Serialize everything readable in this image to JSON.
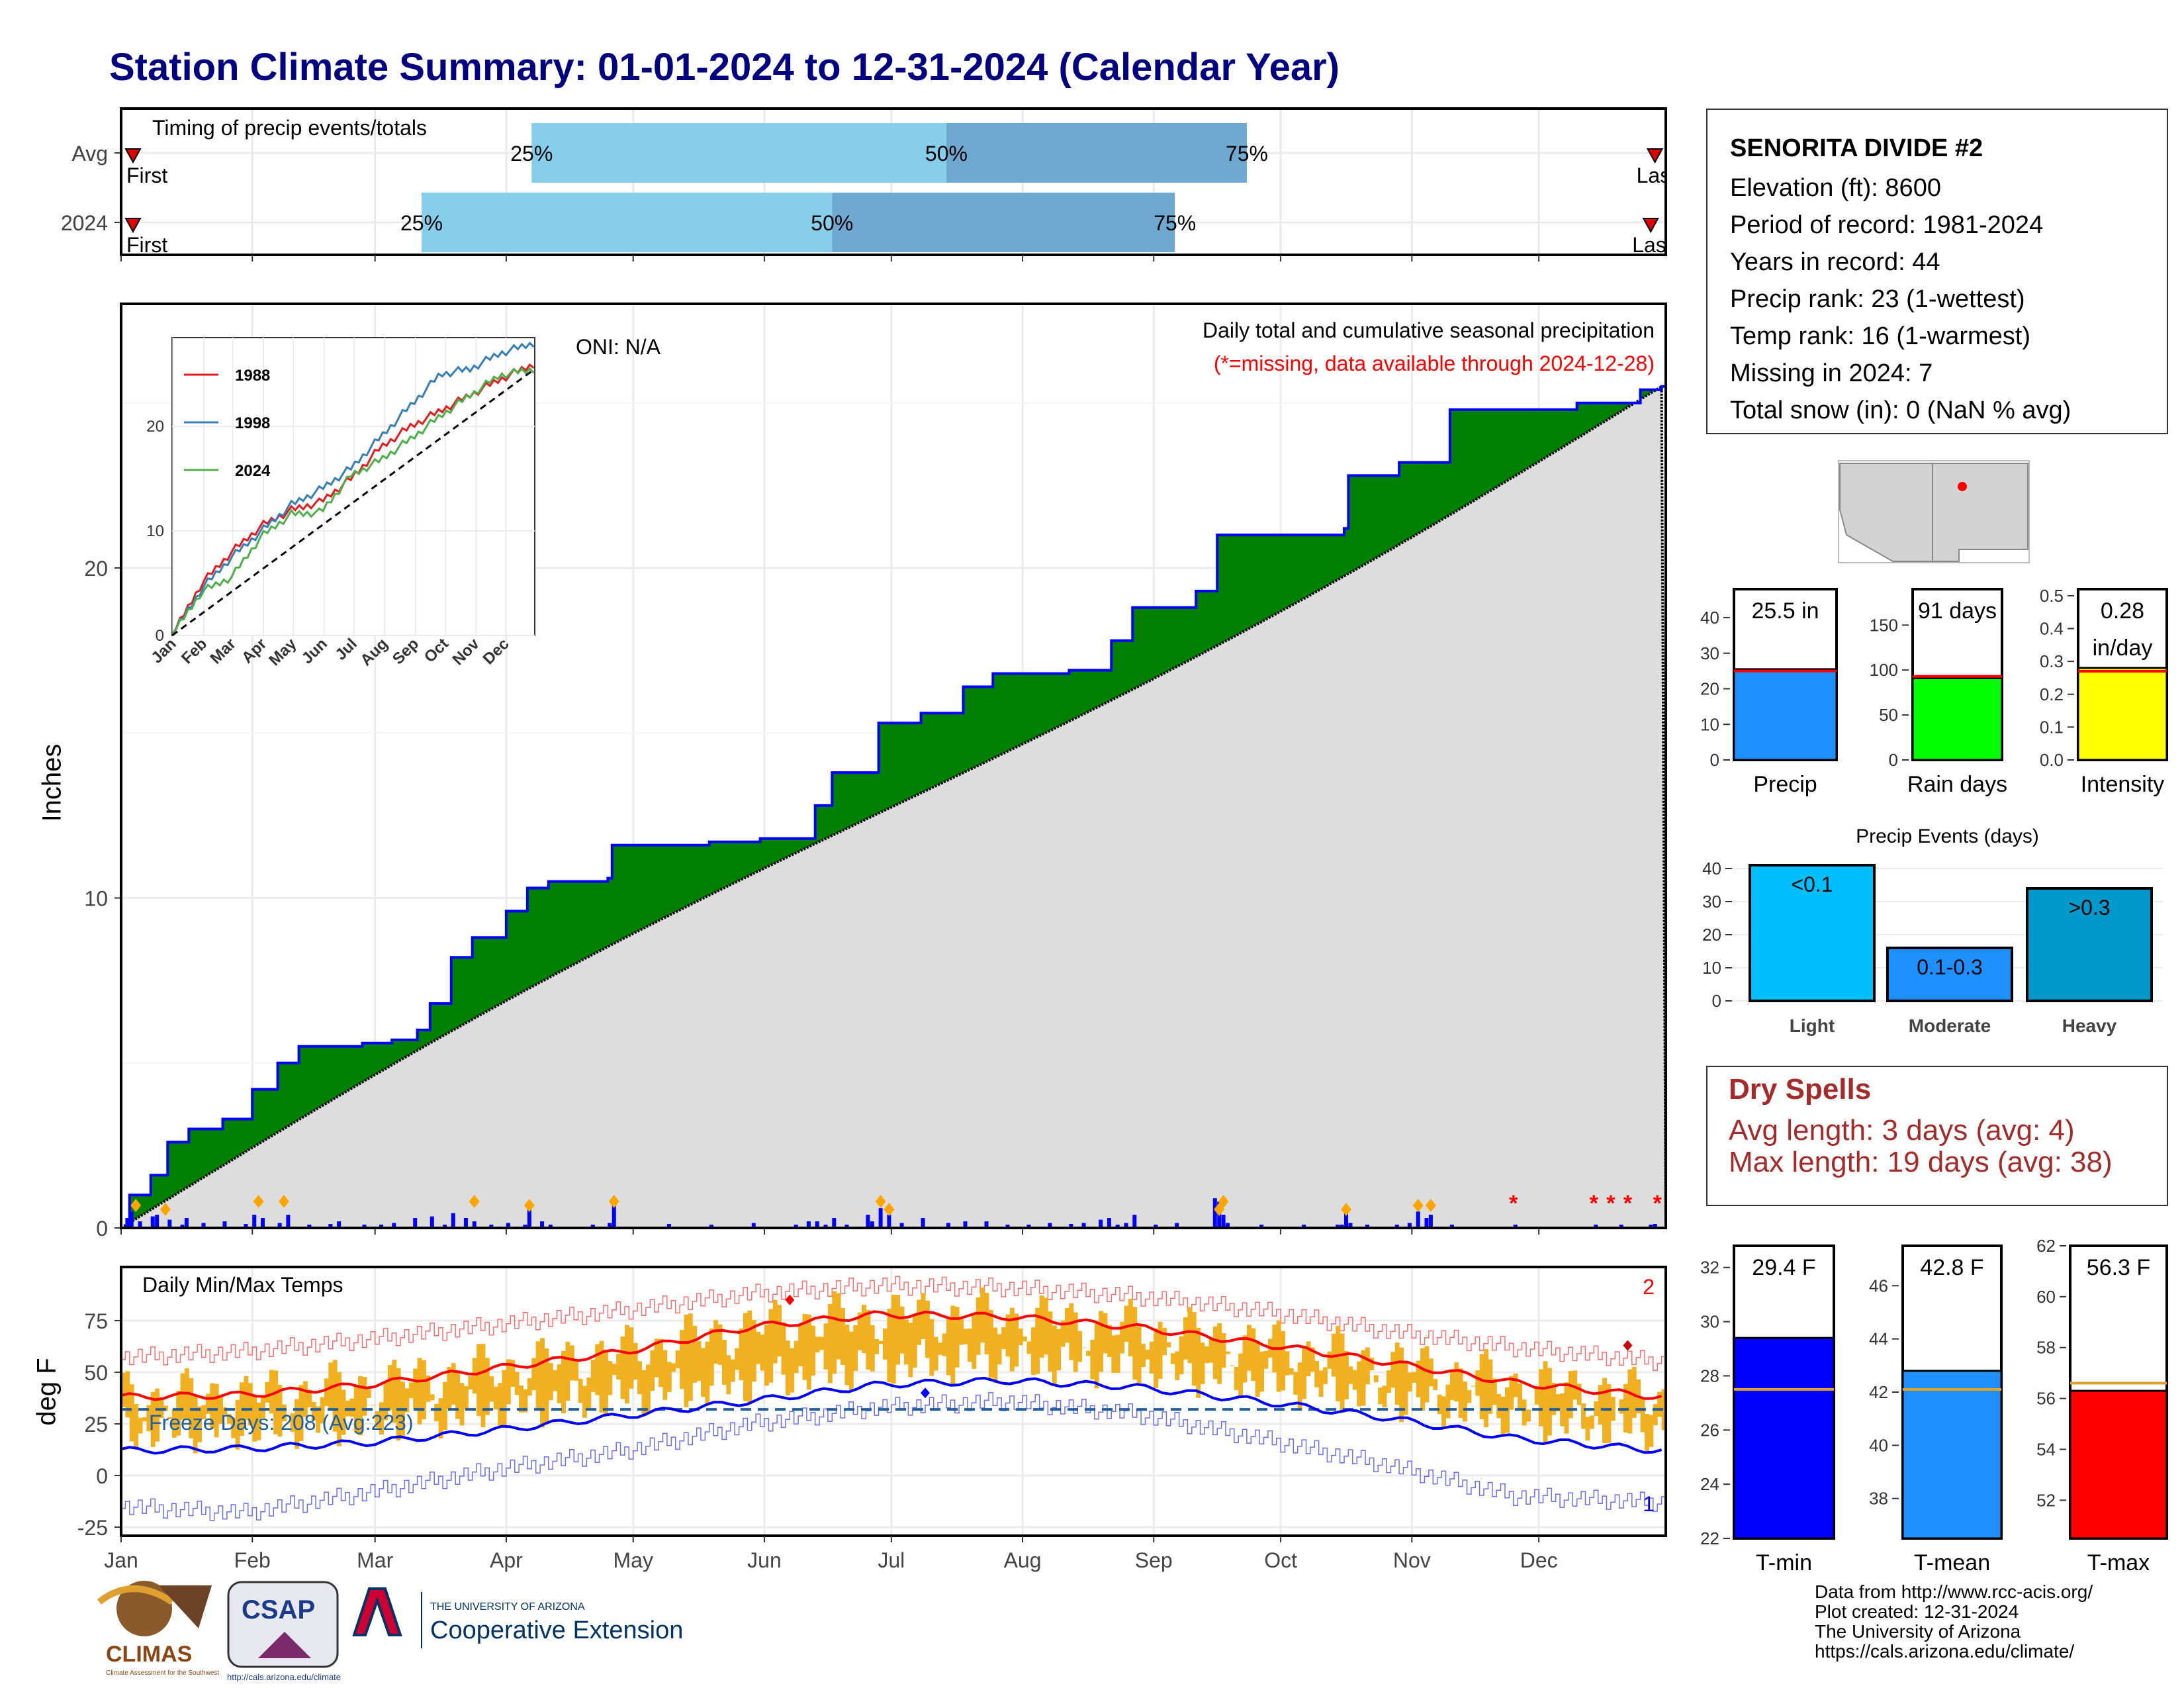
{
  "title": "Station Climate Summary: 01-01-2024 to 12-31-2024 (Calendar Year)",
  "station": {
    "name": "SENORITA DIVIDE #2",
    "lines": [
      "Elevation (ft): 8600",
      "Period of record: 1981-2024",
      "Years in record: 44",
      "Precip rank: 23 (1-wettest)",
      "Temp rank: 16 (1-warmest)",
      "Missing in 2024: 7",
      "Total snow (in): 0 (NaN % avg)"
    ]
  },
  "dry_spells": {
    "title": "Dry Spells",
    "avg_line": "Avg length: 3 days (avg: 4)",
    "max_line": "Max length: 19 days (avg: 38)"
  },
  "credits": [
    "Data from http://www.rcc-acis.org/",
    "Plot created: 12-31-2024",
    "The University of Arizona",
    "https://cals.arizona.edu/climate/"
  ],
  "logos": {
    "climas": "CLIMAS",
    "climas_sub": "Climate Assessment for the Southwest",
    "csap": "CSAP",
    "csap_url": "http://cals.arizona.edu/climate",
    "ua_small": "THE UNIVERSITY OF ARIZONA",
    "ua_big": "Cooperative Extension"
  },
  "colors": {
    "navy_title": "#000080",
    "green_fill": "#008000",
    "gray_fill": "#dddddd",
    "blue_line": "#0000ff",
    "light_blue": "#87ceeb",
    "mid_blue": "#6fa8d0",
    "red": "#ff0000",
    "orange_bars": "#f0b020",
    "freeze_line": "#1f5f9f",
    "dry_text": "#a52a2a"
  },
  "chart_data": [
    {
      "id": "timing",
      "type": "bar",
      "title": "Timing of precip events/totals",
      "rows": [
        {
          "label": "Avg",
          "first_day": 1,
          "p25_day": 98,
          "p50_day": 196,
          "p75_day": 267,
          "last_day": 365
        },
        {
          "label": "2024",
          "first_day": 1,
          "p25_day": 72,
          "p50_day": 169,
          "p75_day": 250,
          "last_day": 364
        }
      ],
      "marker_labels": {
        "first": "First",
        "last": "Last",
        "p25": "25%",
        "p50": "50%",
        "p75": "75%"
      }
    },
    {
      "id": "cumulative_precip",
      "type": "area",
      "title": "Daily total and cumulative seasonal precipitation",
      "subtitle": "(*=missing, data available through 2024-12-28)",
      "oni": "ONI: N/A",
      "ylabel": "Inches",
      "ylim": [
        0,
        28
      ],
      "yticks": [
        0,
        10,
        20
      ],
      "months": [
        "Jan",
        "Feb",
        "Mar",
        "Apr",
        "May",
        "Jun",
        "Jul",
        "Aug",
        "Sep",
        "Oct",
        "Nov",
        "Dec"
      ],
      "cumulative_2024": [
        [
          1,
          0
        ],
        [
          3,
          1.0
        ],
        [
          8,
          1.6
        ],
        [
          12,
          2.6
        ],
        [
          17,
          3.0
        ],
        [
          25,
          3.3
        ],
        [
          32,
          4.2
        ],
        [
          38,
          5.0
        ],
        [
          43,
          5.5
        ],
        [
          58,
          5.6
        ],
        [
          65,
          5.7
        ],
        [
          71,
          6.0
        ],
        [
          74,
          6.8
        ],
        [
          79,
          8.2
        ],
        [
          84,
          8.8
        ],
        [
          92,
          9.6
        ],
        [
          97,
          10.3
        ],
        [
          102,
          10.5
        ],
        [
          116,
          10.6
        ],
        [
          117,
          11.6
        ],
        [
          140,
          11.7
        ],
        [
          152,
          11.8
        ],
        [
          165,
          12.8
        ],
        [
          169,
          13.8
        ],
        [
          180,
          15.3
        ],
        [
          190,
          15.6
        ],
        [
          200,
          16.4
        ],
        [
          207,
          16.8
        ],
        [
          225,
          16.9
        ],
        [
          235,
          17.8
        ],
        [
          240,
          18.8
        ],
        [
          255,
          19.3
        ],
        [
          260,
          21.0
        ],
        [
          290,
          21.2
        ],
        [
          291,
          22.8
        ],
        [
          303,
          23.2
        ],
        [
          315,
          24.8
        ],
        [
          345,
          25.0
        ],
        [
          360,
          25.4
        ],
        [
          365,
          25.5
        ]
      ],
      "cumulative_avg_start": 0,
      "cumulative_avg_end": 25.5,
      "daily_markers_days": [
        4,
        11,
        33,
        39,
        84,
        97,
        117,
        180,
        182,
        260,
        261,
        290,
        307,
        310
      ],
      "missing_days": [
        330,
        349,
        353,
        357,
        364
      ]
    },
    {
      "id": "inset_cumulative",
      "type": "line",
      "yticks": [
        0,
        10,
        20
      ],
      "months": [
        "Jan",
        "Feb",
        "Mar",
        "Apr",
        "May",
        "Jun",
        "Jul",
        "Aug",
        "Sep",
        "Oct",
        "Nov",
        "Dec"
      ],
      "series": [
        {
          "name": "1988",
          "color": "#e41a1c",
          "points": [
            [
              0,
              0
            ],
            [
              30,
              5
            ],
            [
              60,
              8
            ],
            [
              90,
              10.5
            ],
            [
              120,
              12
            ],
            [
              150,
              12.8
            ],
            [
              180,
              15
            ],
            [
              210,
              18
            ],
            [
              240,
              20
            ],
            [
              270,
              21.5
            ],
            [
              300,
              23
            ],
            [
              330,
              24.5
            ],
            [
              365,
              26
            ]
          ]
        },
        {
          "name": "1998",
          "color": "#377eb8",
          "points": [
            [
              0,
              0
            ],
            [
              30,
              4.5
            ],
            [
              60,
              7.5
            ],
            [
              90,
              10
            ],
            [
              120,
              12.5
            ],
            [
              150,
              14
            ],
            [
              180,
              16
            ],
            [
              210,
              19
            ],
            [
              240,
              22
            ],
            [
              270,
              25
            ],
            [
              300,
              25.5
            ],
            [
              330,
              27
            ],
            [
              365,
              28
            ]
          ]
        },
        {
          "name": "2024",
          "color": "#4daf4a",
          "points": [
            [
              0,
              0
            ],
            [
              30,
              4.2
            ],
            [
              60,
              5.6
            ],
            [
              90,
              9.5
            ],
            [
              120,
              11.6
            ],
            [
              150,
              11.8
            ],
            [
              180,
              15.3
            ],
            [
              210,
              16.8
            ],
            [
              240,
              18.8
            ],
            [
              270,
              21
            ],
            [
              300,
              23
            ],
            [
              330,
              24.9
            ],
            [
              365,
              25.5
            ]
          ]
        }
      ]
    },
    {
      "id": "daily_temps",
      "type": "line",
      "title": "Daily Min/Max Temps",
      "ylabel": "deg F",
      "ylim": [
        -30,
        95
      ],
      "yticks": [
        -25,
        0,
        25,
        50,
        75
      ],
      "freeze_label": "Freeze Days: 208 (Avg:223)",
      "freeze_threshold": 32,
      "max_record_count": "2",
      "min_record_count": "1",
      "avg_max_line": [
        [
          0,
          38
        ],
        [
          30,
          39
        ],
        [
          60,
          44
        ],
        [
          90,
          52
        ],
        [
          120,
          60
        ],
        [
          150,
          72
        ],
        [
          180,
          78
        ],
        [
          210,
          77
        ],
        [
          240,
          72
        ],
        [
          270,
          64
        ],
        [
          300,
          55
        ],
        [
          330,
          45
        ],
        [
          365,
          38
        ]
      ],
      "avg_min_line": [
        [
          0,
          12
        ],
        [
          30,
          13
        ],
        [
          60,
          16
        ],
        [
          90,
          22
        ],
        [
          120,
          29
        ],
        [
          150,
          36
        ],
        [
          180,
          44
        ],
        [
          210,
          46
        ],
        [
          240,
          43
        ],
        [
          270,
          36
        ],
        [
          300,
          28
        ],
        [
          330,
          18
        ],
        [
          365,
          12
        ]
      ],
      "record_max_line": [
        [
          0,
          57
        ],
        [
          30,
          60
        ],
        [
          60,
          66
        ],
        [
          90,
          73
        ],
        [
          120,
          80
        ],
        [
          150,
          88
        ],
        [
          180,
          92
        ],
        [
          210,
          91
        ],
        [
          240,
          87
        ],
        [
          270,
          80
        ],
        [
          300,
          70
        ],
        [
          330,
          62
        ],
        [
          365,
          55
        ]
      ],
      "record_min_line": [
        [
          0,
          -15
        ],
        [
          30,
          -18
        ],
        [
          60,
          -8
        ],
        [
          90,
          3
        ],
        [
          120,
          12
        ],
        [
          150,
          25
        ],
        [
          180,
          33
        ],
        [
          210,
          36
        ],
        [
          240,
          30
        ],
        [
          270,
          18
        ],
        [
          300,
          5
        ],
        [
          330,
          -10
        ],
        [
          365,
          -13
        ]
      ]
    },
    {
      "id": "precip_bar",
      "type": "bar",
      "category": "Precip",
      "value": 25.5,
      "label": "25.5 in",
      "avg": 25,
      "yticks": [
        0,
        10,
        20,
        30,
        40
      ],
      "ylim": [
        0,
        48
      ]
    },
    {
      "id": "raindays_bar",
      "type": "bar",
      "category": "Rain days",
      "value": 91,
      "label": "91 days",
      "avg": 93,
      "yticks": [
        0,
        50,
        100,
        150
      ],
      "ylim": [
        0,
        190
      ]
    },
    {
      "id": "intensity_bar",
      "type": "bar",
      "category": "Intensity",
      "value": 0.28,
      "label_top": "0.28",
      "label_unit": "in/day",
      "avg": 0.27,
      "yticks": [
        0.0,
        0.1,
        0.2,
        0.3,
        0.4,
        0.5
      ],
      "ylim": [
        0,
        0.52
      ]
    },
    {
      "id": "precip_events",
      "type": "bar",
      "title": "Precip Events (days)",
      "categories": [
        "Light",
        "Moderate",
        "Heavy"
      ],
      "labels": [
        "<0.1",
        "0.1-0.3",
        ">0.3"
      ],
      "values": [
        41,
        16,
        34
      ],
      "colors": [
        "#00bfff",
        "#1e90ff",
        "#0099cc"
      ],
      "yticks": [
        0,
        10,
        20,
        30,
        40
      ],
      "ylim": [
        0,
        42
      ]
    },
    {
      "id": "tmin_bar",
      "type": "bar",
      "category": "T-min",
      "value": 29.4,
      "label": "29.4 F",
      "avg": 27.5,
      "yticks": [
        22,
        24,
        26,
        28,
        30,
        32
      ],
      "ylim": [
        22,
        32.8
      ]
    },
    {
      "id": "tmean_bar",
      "type": "bar",
      "category": "T-mean",
      "value": 42.8,
      "label": "42.8 F",
      "avg": 42.1,
      "yticks": [
        38,
        40,
        42,
        44,
        46
      ],
      "ylim": [
        36.5,
        47.5
      ]
    },
    {
      "id": "tmax_bar",
      "type": "bar",
      "category": "T-max",
      "value": 56.3,
      "label": "56.3 F",
      "avg": 56.6,
      "yticks": [
        52,
        54,
        56,
        58,
        60,
        62
      ],
      "ylim": [
        50.5,
        62
      ]
    }
  ]
}
